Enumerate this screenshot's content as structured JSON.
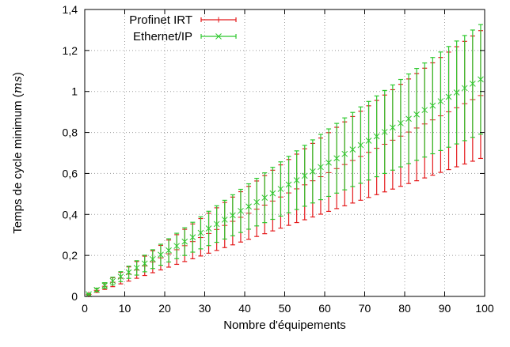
{
  "chart_data": {
    "type": "scatter",
    "xlabel": "Nombre d'équipements",
    "ylabel": "Temps de cycle minimum (ms)",
    "ylabel_main": "Temps de cycle minimum (",
    "ylabel_unit": "ms",
    "ylabel_close": ")",
    "xlim": [
      0,
      100
    ],
    "ylim": [
      0,
      1.4
    ],
    "xticks": [
      0,
      10,
      20,
      30,
      40,
      50,
      60,
      70,
      80,
      90,
      100
    ],
    "yticks": [
      0,
      0.2,
      0.4,
      0.6,
      0.8,
      1,
      1.2,
      1.4
    ],
    "xtick_labels": [
      "0",
      "10",
      "20",
      "30",
      "40",
      "50",
      "60",
      "70",
      "80",
      "90",
      "100"
    ],
    "ytick_labels": [
      "0",
      "0,2",
      "0,4",
      "0,6",
      "0,8",
      "1",
      "1,2",
      "1,4"
    ],
    "grid": true,
    "legend_position": "top-left",
    "series": [
      {
        "name": "Profinet IRT",
        "color": "#e41a1c",
        "marker": "plus",
        "x": [
          1,
          3,
          5,
          7,
          9,
          11,
          13,
          15,
          17,
          19,
          21,
          23,
          25,
          27,
          29,
          31,
          33,
          35,
          37,
          39,
          41,
          43,
          45,
          47,
          49,
          51,
          53,
          55,
          57,
          59,
          61,
          63,
          65,
          67,
          69,
          71,
          73,
          75,
          77,
          79,
          81,
          83,
          85,
          87,
          89,
          91,
          93,
          95,
          97,
          99
        ],
        "slope_mean": 0.0099,
        "slope_low": 0.0068,
        "slope_high": 0.0131
      },
      {
        "name": "Ethernet/IP",
        "color": "#2ec82e",
        "marker": "cross",
        "x": [
          1,
          3,
          5,
          7,
          9,
          11,
          13,
          15,
          17,
          19,
          21,
          23,
          25,
          27,
          29,
          31,
          33,
          35,
          37,
          39,
          41,
          43,
          45,
          47,
          49,
          51,
          53,
          55,
          57,
          59,
          61,
          63,
          65,
          67,
          69,
          71,
          73,
          75,
          77,
          79,
          81,
          83,
          85,
          87,
          89,
          91,
          93,
          95,
          97,
          99
        ],
        "slope_mean": 0.0107,
        "slope_low": 0.008,
        "slope_high": 0.0134
      }
    ]
  }
}
